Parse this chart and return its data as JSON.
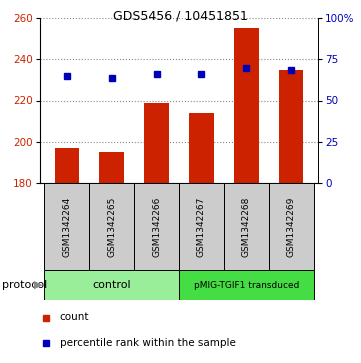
{
  "title": "GDS5456 / 10451851",
  "samples": [
    "GSM1342264",
    "GSM1342265",
    "GSM1342266",
    "GSM1342267",
    "GSM1342268",
    "GSM1342269"
  ],
  "counts": [
    197,
    195,
    219,
    214,
    255,
    235
  ],
  "percentile_ranks": [
    232,
    231,
    233,
    233,
    236,
    235
  ],
  "ylim_left": [
    180,
    260
  ],
  "ylim_right": [
    0,
    100
  ],
  "yticks_left": [
    180,
    200,
    220,
    240,
    260
  ],
  "yticks_right": [
    0,
    25,
    50,
    75,
    100
  ],
  "ytick_labels_right": [
    "0",
    "25",
    "50",
    "75",
    "100%"
  ],
  "bar_color": "#cc2200",
  "marker_color": "#0000bb",
  "grid_color": "#888888",
  "control_color": "#99ee99",
  "pmig_color": "#44dd44",
  "label_bg_color": "#cccccc",
  "bar_width": 0.55,
  "base_value": 180,
  "title_fontsize": 9,
  "axis_fontsize": 7.5,
  "label_fontsize": 6.5,
  "protocol_fontsize": 8,
  "legend_fontsize": 7.5
}
